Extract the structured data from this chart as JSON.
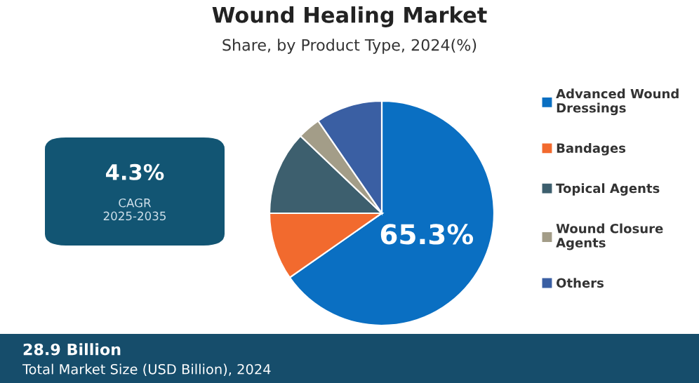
{
  "chart_data": {
    "type": "pie",
    "title": "Wound Healing Market",
    "subtitle": "Share, by Product Type, 2024(%)",
    "categories": [
      "Advanced Wound Dressings",
      "Bandages",
      "Topical Agents",
      "Wound Closure Agents",
      "Others"
    ],
    "values": [
      65.3,
      9.7,
      12.1,
      3.3,
      9.6
    ],
    "colors": [
      "#0a6fc2",
      "#f26a2e",
      "#3d5f6e",
      "#a39d88",
      "#3a5fa3"
    ],
    "value_labels": [
      "65.3%",
      null,
      null,
      null,
      null
    ],
    "legend": "right",
    "annotations": [
      "4.3%",
      "CAGR\n2025-2035",
      "28.9 Billion",
      "Total Market Size (USD Billion), 2024"
    ]
  }
}
